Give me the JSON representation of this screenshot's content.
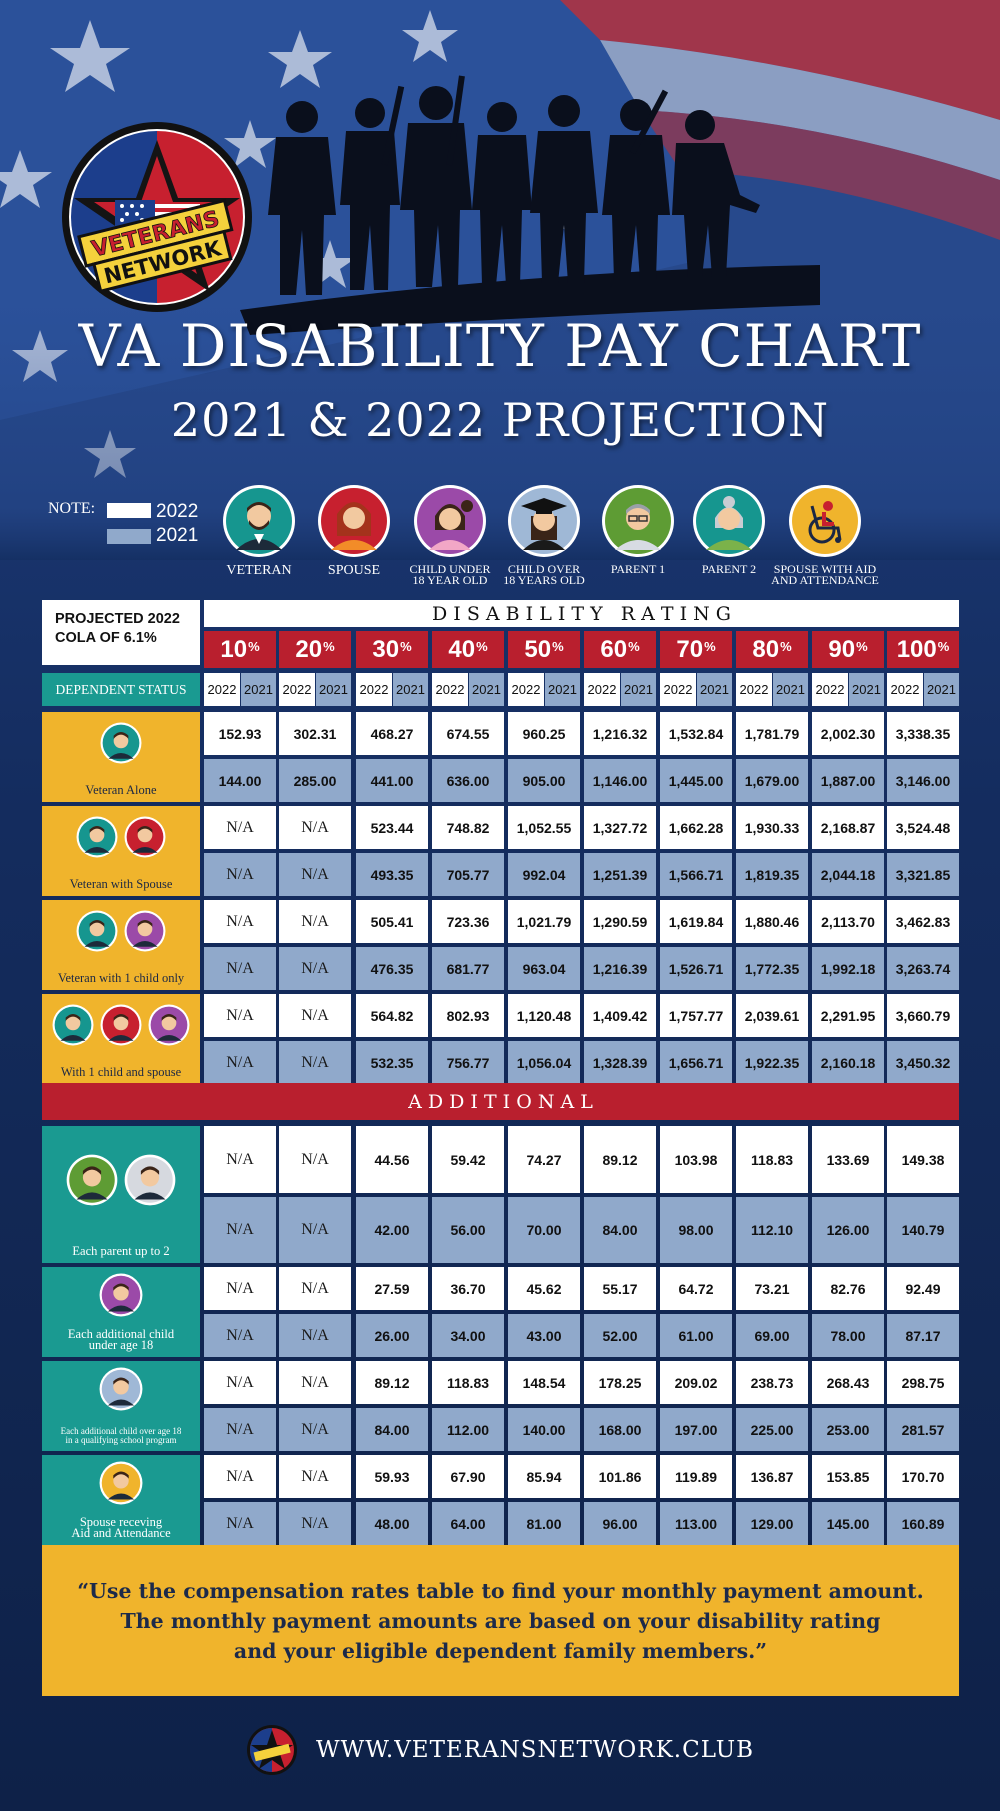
{
  "header": {
    "logo_top": "VETERANS",
    "logo_bottom": "NETWORK",
    "title": "VA DISABILITY PAY CHART",
    "subtitle": "2021 & 2022 PROJECTION"
  },
  "note": {
    "label": "NOTE:",
    "legend": [
      {
        "year": "2022",
        "color": "#ffffff"
      },
      {
        "year": "2021",
        "color": "#90a9cb"
      }
    ]
  },
  "icons": [
    {
      "icon": "veteran-icon",
      "label": "VETERAN"
    },
    {
      "icon": "spouse-icon",
      "label": "SPOUSE"
    },
    {
      "icon": "child-under-18-icon",
      "label": "CHILD UNDER",
      "label2": "18 YEAR OLD"
    },
    {
      "icon": "child-over-18-icon",
      "label": "CHILD OVER",
      "label2": "18 YEARS OLD"
    },
    {
      "icon": "parent-1-icon",
      "label": "PARENT 1"
    },
    {
      "icon": "parent-2-icon",
      "label": "PARENT 2"
    },
    {
      "icon": "wheelchair-icon",
      "label": "SPOUSE WITH AID",
      "label2": "AND ATTENDANCE"
    }
  ],
  "table": {
    "cola_label": "PROJECTED 2022",
    "cola_label2": "COLA OF 6.1%",
    "rating_heading": "D I S A B I L I T Y   R A T I N G",
    "dependent_status_label": "DEPENDENT STATUS",
    "ratings": [
      "10",
      "20",
      "30",
      "40",
      "50",
      "60",
      "70",
      "80",
      "90",
      "100"
    ],
    "percent_sign": "%",
    "years": [
      "2022",
      "2021"
    ],
    "rows": [
      {
        "label": "Veteran Alone",
        "v2022": [
          "152.93",
          "302.31",
          "468.27",
          "674.55",
          "960.25",
          "1,216.32",
          "1,532.84",
          "1,781.79",
          "2,002.30",
          "3,338.35"
        ],
        "v2021": [
          "144.00",
          "285.00",
          "441.00",
          "636.00",
          "905.00",
          "1,146.00",
          "1,445.00",
          "1,679.00",
          "1,887.00",
          "3,146.00"
        ]
      },
      {
        "label": "Veteran with Spouse",
        "v2022": [
          "N/A",
          "N/A",
          "523.44",
          "748.82",
          "1,052.55",
          "1,327.72",
          "1,662.28",
          "1,930.33",
          "2,168.87",
          "3,524.48"
        ],
        "v2021": [
          "N/A",
          "N/A",
          "493.35",
          "705.77",
          "992.04",
          "1,251.39",
          "1,566.71",
          "1,819.35",
          "2,044.18",
          "3,321.85"
        ]
      },
      {
        "label": "Veteran with 1 child only",
        "v2022": [
          "N/A",
          "N/A",
          "505.41",
          "723.36",
          "1,021.79",
          "1,290.59",
          "1,619.84",
          "1,880.46",
          "2,113.70",
          "3,462.83"
        ],
        "v2021": [
          "N/A",
          "N/A",
          "476.35",
          "681.77",
          "963.04",
          "1,216.39",
          "1,526.71",
          "1,772.35",
          "1,992.18",
          "3,263.74"
        ]
      },
      {
        "label": "With 1 child and spouse",
        "v2022": [
          "N/A",
          "N/A",
          "564.82",
          "802.93",
          "1,120.48",
          "1,409.42",
          "1,757.77",
          "2,039.61",
          "2,291.95",
          "3,660.79"
        ],
        "v2021": [
          "N/A",
          "N/A",
          "532.35",
          "756.77",
          "1,056.04",
          "1,328.39",
          "1,656.71",
          "1,922.35",
          "2,160.18",
          "3,450.32"
        ]
      }
    ],
    "additional_heading": "A D D I T I O N A L",
    "additional_rows": [
      {
        "label": "Each parent up to 2",
        "v2022": [
          "N/A",
          "N/A",
          "44.56",
          "59.42",
          "74.27",
          "89.12",
          "103.98",
          "118.83",
          "133.69",
          "149.38"
        ],
        "v2021": [
          "N/A",
          "N/A",
          "42.00",
          "56.00",
          "70.00",
          "84.00",
          "98.00",
          "112.10",
          "126.00",
          "140.79"
        ]
      },
      {
        "label": "Each additional child",
        "label2": "under age 18",
        "v2022": [
          "N/A",
          "N/A",
          "27.59",
          "36.70",
          "45.62",
          "55.17",
          "64.72",
          "73.21",
          "82.76",
          "92.49"
        ],
        "v2021": [
          "N/A",
          "N/A",
          "26.00",
          "34.00",
          "43.00",
          "52.00",
          "61.00",
          "69.00",
          "78.00",
          "87.17"
        ]
      },
      {
        "label": "Each additional child over age 18",
        "label2": "in a qualifying school program",
        "v2022": [
          "N/A",
          "N/A",
          "89.12",
          "118.83",
          "148.54",
          "178.25",
          "209.02",
          "238.73",
          "268.43",
          "298.75"
        ],
        "v2021": [
          "N/A",
          "N/A",
          "84.00",
          "112.00",
          "140.00",
          "168.00",
          "197.00",
          "225.00",
          "253.00",
          "281.57"
        ]
      },
      {
        "label": "Spouse receving",
        "label2": "Aid and Attendance",
        "v2022": [
          "N/A",
          "N/A",
          "59.93",
          "67.90",
          "85.94",
          "101.86",
          "119.89",
          "136.87",
          "153.85",
          "170.70"
        ],
        "v2021": [
          "N/A",
          "N/A",
          "48.00",
          "64.00",
          "81.00",
          "96.00",
          "113.00",
          "129.00",
          "145.00",
          "160.89"
        ]
      }
    ]
  },
  "quote": {
    "line1": "“Use the compensation rates table to find your monthly payment amount.",
    "line2": "The monthly payment amounts are based on your disability rating",
    "line3": "and your eligible dependent family members.”"
  },
  "footer": {
    "url": "WWW.VETERANSNETWORK.CLUB"
  },
  "colors": {
    "red": "#b91f2e",
    "gold": "#f0b42c",
    "teal": "#1a9a91",
    "blue_cell": "#90a9cb",
    "navy": "#142c5e"
  }
}
